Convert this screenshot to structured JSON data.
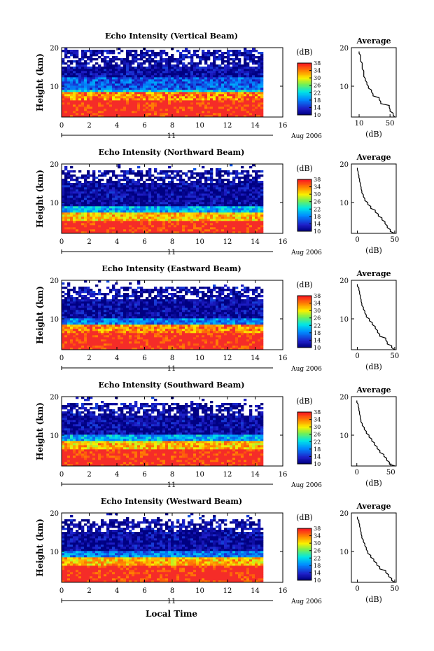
{
  "figure": {
    "xlabel_bottom": "Local Time",
    "date_label": "Aug 2006",
    "day_label": "11",
    "colorbar_unit": "(dB)",
    "colorbar_ticks": [
      10,
      14,
      18,
      22,
      26,
      30,
      34,
      38
    ]
  },
  "chart_data": [
    {
      "type": "heatmap",
      "title": "Echo Intensity (Vertical Beam)",
      "ylabel": "Height (km)",
      "xlim": [
        0,
        16
      ],
      "ylim": [
        2,
        20
      ],
      "xticks": [
        0,
        2,
        4,
        6,
        8,
        10,
        12,
        14,
        16
      ],
      "yticks": [
        10,
        20
      ],
      "data_end_hour": 14.4,
      "color_range_db": [
        10,
        38
      ],
      "layers": [
        {
          "height_km": [
            2,
            6
          ],
          "echo_db": 38
        },
        {
          "height_km": [
            6,
            8
          ],
          "echo_db": 34
        },
        {
          "height_km": [
            8,
            9
          ],
          "echo_db": 22
        },
        {
          "height_km": [
            9,
            12
          ],
          "echo_db": 16
        },
        {
          "height_km": [
            12,
            19
          ],
          "echo_db": 11
        }
      ],
      "average_profile": {
        "title": "Average",
        "xlabel": "(dB)",
        "xlim": [
          0,
          58
        ],
        "xticks": [
          10,
          50
        ],
        "height_km": [
          2,
          3,
          4,
          5,
          6,
          7,
          8,
          9,
          10,
          11,
          12,
          13,
          14,
          15,
          16,
          17,
          18,
          19
        ],
        "echo_db": [
          56,
          54,
          50,
          49,
          38,
          36,
          28,
          26,
          22,
          20,
          18,
          16,
          16,
          14,
          14,
          12,
          12,
          10
        ]
      }
    },
    {
      "type": "heatmap",
      "title": "Echo Intensity (Northward Beam)",
      "ylabel": "Height (km)",
      "xlim": [
        0,
        16
      ],
      "ylim": [
        2,
        20
      ],
      "xticks": [
        0,
        2,
        4,
        6,
        8,
        10,
        12,
        14,
        16
      ],
      "yticks": [
        10,
        20
      ],
      "data_end_hour": 14.4,
      "color_range_db": [
        10,
        38
      ],
      "layers": [
        {
          "height_km": [
            2,
            5
          ],
          "echo_db": 38
        },
        {
          "height_km": [
            5,
            7
          ],
          "echo_db": 32
        },
        {
          "height_km": [
            7,
            9
          ],
          "echo_db": 20
        },
        {
          "height_km": [
            9,
            18
          ],
          "echo_db": 11
        }
      ],
      "average_profile": {
        "title": "Average",
        "xlabel": "(dB)",
        "xlim": [
          -8,
          52
        ],
        "xticks": [
          0,
          50
        ],
        "height_km": [
          2,
          3,
          4,
          5,
          6,
          7,
          8,
          9,
          10,
          11,
          12,
          13,
          14,
          15,
          16,
          17,
          18,
          19
        ],
        "echo_db": [
          50,
          44,
          40,
          37,
          33,
          28,
          24,
          18,
          14,
          10,
          8,
          6,
          5,
          4,
          3,
          2,
          1,
          0
        ]
      }
    },
    {
      "type": "heatmap",
      "title": "Echo Intensity (Eastward Beam)",
      "ylabel": "Height (km)",
      "xlim": [
        0,
        16
      ],
      "ylim": [
        2,
        20
      ],
      "xticks": [
        0,
        2,
        4,
        6,
        8,
        10,
        12,
        14,
        16
      ],
      "yticks": [
        10,
        20
      ],
      "data_end_hour": 14.4,
      "color_range_db": [
        10,
        38
      ],
      "layers": [
        {
          "height_km": [
            2,
            6
          ],
          "echo_db": 38
        },
        {
          "height_km": [
            6,
            8
          ],
          "echo_db": 34
        },
        {
          "height_km": [
            8,
            10
          ],
          "echo_db": 18
        },
        {
          "height_km": [
            10,
            18
          ],
          "echo_db": 11
        }
      ],
      "average_profile": {
        "title": "Average",
        "xlabel": "(dB)",
        "xlim": [
          -8,
          52
        ],
        "xticks": [
          0,
          50
        ],
        "height_km": [
          2,
          3,
          4,
          5,
          6,
          7,
          8,
          9,
          10,
          11,
          12,
          13,
          14,
          15,
          16,
          17,
          18,
          19
        ],
        "echo_db": [
          50,
          46,
          40,
          38,
          30,
          27,
          24,
          20,
          16,
          12,
          10,
          8,
          6,
          5,
          4,
          3,
          2,
          0
        ]
      }
    },
    {
      "type": "heatmap",
      "title": "Echo Intensity (Southward Beam)",
      "ylabel": "Height (km)",
      "xlim": [
        0,
        16
      ],
      "ylim": [
        2,
        20
      ],
      "xticks": [
        0,
        2,
        4,
        6,
        8,
        10,
        12,
        14,
        16
      ],
      "yticks": [
        10,
        20
      ],
      "data_end_hour": 14.4,
      "color_range_db": [
        10,
        38
      ],
      "layers": [
        {
          "height_km": [
            2,
            6
          ],
          "echo_db": 38
        },
        {
          "height_km": [
            6,
            8
          ],
          "echo_db": 32
        },
        {
          "height_km": [
            8,
            10
          ],
          "echo_db": 20
        },
        {
          "height_km": [
            10,
            18
          ],
          "echo_db": 11
        }
      ],
      "average_profile": {
        "title": "Average",
        "xlabel": "(dB)",
        "xlim": [
          -8,
          58
        ],
        "xticks": [
          0,
          50
        ],
        "height_km": [
          2,
          3,
          4,
          5,
          6,
          7,
          8,
          9,
          10,
          11,
          12,
          13,
          14,
          15,
          16,
          17,
          18,
          19
        ],
        "echo_db": [
          56,
          48,
          44,
          40,
          34,
          30,
          26,
          22,
          18,
          14,
          11,
          8,
          6,
          5,
          4,
          3,
          2,
          0
        ]
      }
    },
    {
      "type": "heatmap",
      "title": "Echo Intensity (Westward Beam)",
      "ylabel": "Height (km)",
      "xlim": [
        0,
        16
      ],
      "ylim": [
        2,
        20
      ],
      "xticks": [
        0,
        2,
        4,
        6,
        8,
        10,
        12,
        14,
        16
      ],
      "yticks": [
        10,
        20
      ],
      "data_end_hour": 14.4,
      "color_range_db": [
        10,
        38
      ],
      "layers": [
        {
          "height_km": [
            2,
            6
          ],
          "echo_db": 38
        },
        {
          "height_km": [
            6,
            8
          ],
          "echo_db": 32
        },
        {
          "height_km": [
            8,
            10
          ],
          "echo_db": 18
        },
        {
          "height_km": [
            10,
            18
          ],
          "echo_db": 11
        }
      ],
      "average_profile": {
        "title": "Average",
        "xlabel": "(dB)",
        "xlim": [
          -8,
          52
        ],
        "xticks": [
          0,
          50
        ],
        "height_km": [
          2,
          3,
          4,
          5,
          6,
          7,
          8,
          9,
          10,
          11,
          12,
          13,
          14,
          15,
          16,
          17,
          18,
          19
        ],
        "echo_db": [
          50,
          46,
          42,
          38,
          30,
          26,
          22,
          18,
          14,
          12,
          10,
          8,
          6,
          5,
          4,
          3,
          2,
          0
        ]
      }
    }
  ]
}
